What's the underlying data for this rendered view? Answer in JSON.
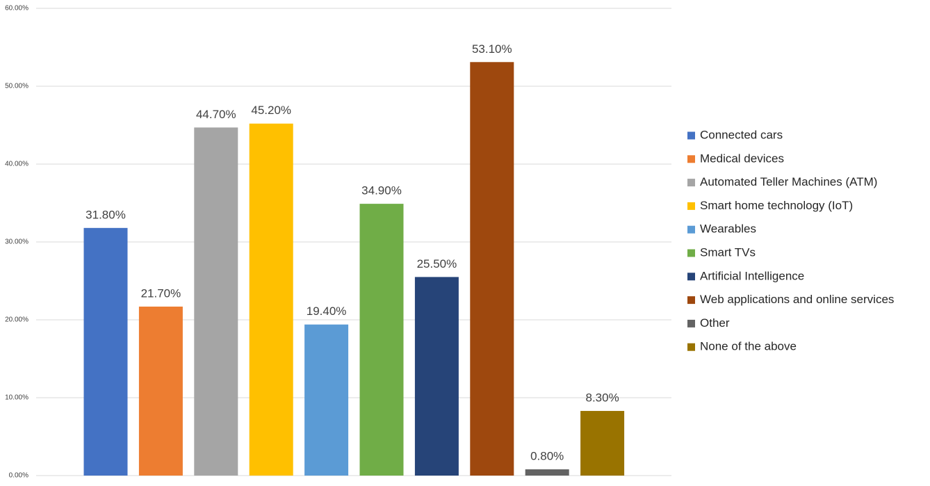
{
  "chart_data": {
    "type": "bar",
    "categories": [
      "Connected cars",
      "Medical devices",
      "Automated Teller Machines (ATM)",
      "Smart home technology (IoT)",
      "Wearables",
      "Smart TVs",
      "Artificial Intelligence",
      "Web applications and online services",
      "Other",
      "None of the above"
    ],
    "values": [
      31.8,
      21.7,
      44.7,
      45.2,
      19.4,
      34.9,
      25.5,
      53.1,
      0.8,
      8.3
    ],
    "value_labels": [
      "31.80%",
      "21.70%",
      "44.70%",
      "45.20%",
      "19.40%",
      "34.90%",
      "25.50%",
      "53.10%",
      "0.80%",
      "8.30%"
    ],
    "colors": [
      "#4472c4",
      "#ed7d31",
      "#a5a5a5",
      "#ffc000",
      "#5b9bd5",
      "#70ad47",
      "#264478",
      "#9e480e",
      "#636363",
      "#997300"
    ],
    "ylim": [
      0,
      60
    ],
    "yticks": [
      {
        "value": 0,
        "label": "0.00%"
      },
      {
        "value": 10,
        "label": "10.00%"
      },
      {
        "value": 20,
        "label": "20.00%"
      },
      {
        "value": 30,
        "label": "30.00%"
      },
      {
        "value": 40,
        "label": "40.00%"
      },
      {
        "value": 50,
        "label": "50.00%"
      },
      {
        "value": 60,
        "label": "60.00%"
      }
    ],
    "grid": true,
    "legend": "right"
  }
}
